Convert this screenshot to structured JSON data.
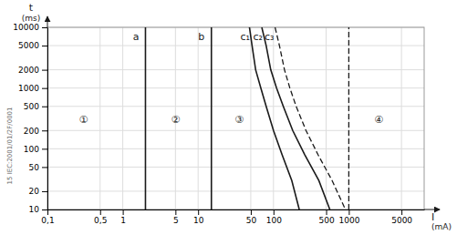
{
  "chart_data": {
    "type": "line",
    "log": true,
    "grid": true,
    "color": "#1a1a1a",
    "xlabel": [
      "I",
      "(mA)"
    ],
    "ylabel": [
      "t",
      "(ms)"
    ],
    "xlim": [
      0.1,
      10000
    ],
    "ylim": [
      10,
      10000
    ],
    "xticks": [
      {
        "value": 0.1,
        "label": "0,1"
      },
      {
        "value": 0.5,
        "label": "0,5"
      },
      1,
      5,
      10,
      50,
      100,
      500,
      1000,
      5000
    ],
    "yticks": [
      10,
      20,
      50,
      100,
      200,
      500,
      1000,
      2000,
      5000,
      10000
    ],
    "series": [
      {
        "x": [
          2,
          2
        ],
        "values": [
          10,
          10000
        ],
        "line_style": "solid"
      },
      {
        "x": [
          15,
          15
        ],
        "values": [
          10,
          10000
        ],
        "line_style": "solid"
      },
      {
        "x": [
          48,
          52,
          58,
          68,
          80,
          100,
          130,
          175,
          220
        ],
        "values": [
          10000,
          5000,
          2000,
          1000,
          500,
          200,
          80,
          30,
          10
        ],
        "line_style": "solid"
      },
      {
        "x": [
          70,
          80,
          92,
          110,
          135,
          180,
          260,
          400,
          560
        ],
        "values": [
          10000,
          5000,
          2000,
          1000,
          500,
          200,
          80,
          30,
          10
        ],
        "line_style": "solid"
      },
      {
        "x": [
          105,
          120,
          140,
          165,
          200,
          270,
          390,
          600,
          900
        ],
        "values": [
          10000,
          5000,
          2000,
          1000,
          500,
          200,
          80,
          30,
          10
        ],
        "line_style": "dashed"
      },
      {
        "x": [
          1000,
          1000
        ],
        "values": [
          10,
          10000
        ],
        "line_style": "dashed"
      }
    ],
    "annotations": [
      {
        "text": "①",
        "x": 0.3,
        "y": 300
      },
      {
        "text": "②",
        "x": 5,
        "y": 300
      },
      {
        "text": "③",
        "x": 35,
        "y": 300
      },
      {
        "text": "④",
        "x": 2500,
        "y": 300
      },
      {
        "text": "a",
        "x": 1.5,
        "y": 7000
      },
      {
        "text": "b",
        "x": 11,
        "y": 7000
      },
      {
        "text": "c₁",
        "x": 42,
        "y": 7000
      },
      {
        "text": "c₂",
        "x": 62,
        "y": 7000
      },
      {
        "text": "c₃",
        "x": 88,
        "y": 7000
      },
      {
        "text": "15 IEC:2001/01/2F/0001"
      }
    ]
  }
}
